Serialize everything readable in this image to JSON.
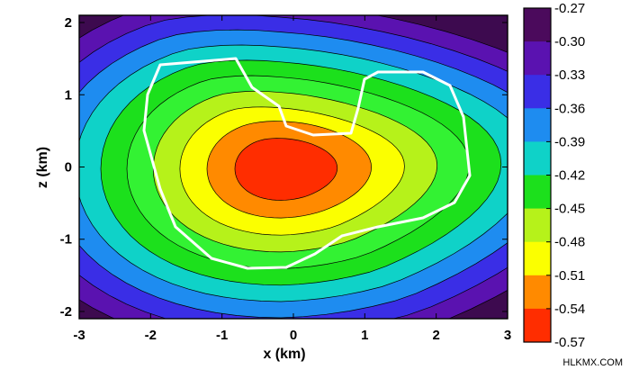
{
  "chart_data": {
    "type": "heatmap",
    "xlabel": "x (km)",
    "ylabel": "z (km)",
    "xlim": [
      -3,
      3
    ],
    "ylim": [
      -2.1,
      2.1
    ],
    "x_ticks": [
      "-3",
      "-2",
      "-1",
      "0",
      "1",
      "2",
      "3"
    ],
    "y_ticks": [
      "2",
      "1",
      "0",
      "-1",
      "-2"
    ],
    "colorbar": {
      "labels": [
        "-0.27",
        "-0.30",
        "-0.33",
        "-0.36",
        "-0.39",
        "-0.42",
        "-0.45",
        "-0.48",
        "-0.51",
        "-0.54",
        "-0.57"
      ],
      "colors": [
        "#4b0a5c",
        "#5a12b0",
        "#3a2ee6",
        "#1e8cf0",
        "#0fd2c8",
        "#1ce01c",
        "#b6f21a",
        "#fbff00",
        "#ff8a00",
        "#ff2d00"
      ]
    },
    "contour_fill_colors": [
      "#3d0a4f",
      "#5a12b0",
      "#3a2ee6",
      "#1e8cf0",
      "#0fd2c8",
      "#1ce01c",
      "#33f233",
      "#b6f21a",
      "#fbff00",
      "#ff8a00",
      "#ff2d00"
    ],
    "minimum_location": [
      -0.3,
      -0.1
    ],
    "outline_color": "#ffffff"
  },
  "watermark": "HLKMX.COM"
}
